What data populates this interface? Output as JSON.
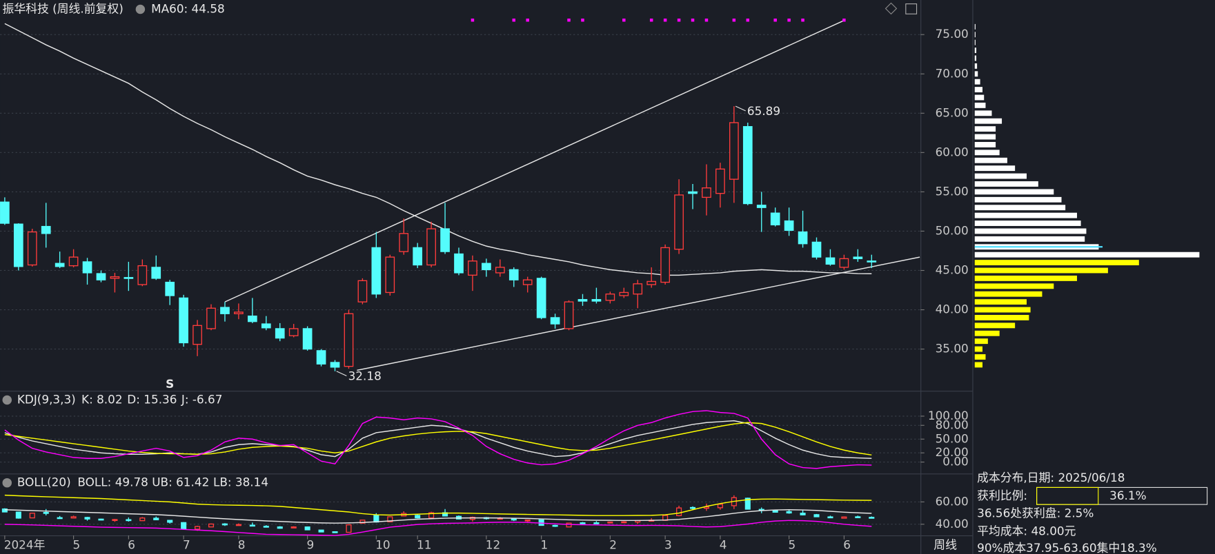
{
  "chart_data": [
    {
      "type": "candlestick",
      "title": "振华科技 (周线.前复权)",
      "period_label": "周线",
      "categories": [
        "2024年",
        null,
        null,
        null,
        null,
        "5",
        null,
        null,
        null,
        "6",
        null,
        null,
        null,
        "7",
        null,
        null,
        null,
        "8",
        null,
        null,
        null,
        null,
        "9",
        null,
        null,
        null,
        null,
        "10",
        null,
        null,
        "11",
        null,
        null,
        null,
        null,
        "12",
        null,
        null,
        null,
        "1",
        null,
        null,
        null,
        null,
        "2",
        null,
        null,
        null,
        "3",
        null,
        null,
        null,
        "4",
        null,
        null,
        null,
        null,
        "5",
        null,
        null,
        null,
        "6",
        null,
        null
      ],
      "open": [
        53.7,
        50.9,
        45.7,
        50.6,
        45.9,
        45.6,
        46.1,
        44.6,
        44,
        44.1,
        43.2,
        45.4,
        43.5,
        41.5,
        35.6,
        37.6,
        40.3,
        39.5,
        39.2,
        38.2,
        37.6,
        36.7,
        37.6,
        34.8,
        33.3,
        32.8,
        41,
        47.9,
        42.2,
        47.4,
        47.9,
        45.7,
        50.3,
        47.1,
        44.4,
        45.9,
        44.7,
        45.1,
        43.2,
        44,
        39,
        37.6,
        41.3,
        41.3,
        41.2,
        41.8,
        42,
        43.2,
        43.5,
        47.7,
        55,
        54.3,
        54.8,
        56.6,
        63.3,
        53.3,
        52.3,
        51.3,
        49.9,
        48.6,
        46.6,
        45.4,
        46.7,
        46.2
      ],
      "high": [
        54.3,
        51,
        50.3,
        53.6,
        47.4,
        47.7,
        46.6,
        45,
        44.7,
        46.1,
        46.4,
        46.9,
        43.8,
        41.9,
        38.7,
        40.7,
        41,
        40.8,
        41.5,
        39.2,
        38.3,
        38.2,
        37.9,
        35,
        33.6,
        40,
        44,
        49.9,
        47,
        51.6,
        48.5,
        51.2,
        53.6,
        47.9,
        46.9,
        46.5,
        46.4,
        45.4,
        44.2,
        44.2,
        39.5,
        41.2,
        42,
        42.8,
        42.3,
        42.8,
        43.8,
        45.4,
        48.3,
        56.6,
        56,
        58.5,
        58.7,
        65.89,
        63.8,
        55,
        53,
        53,
        52.6,
        49.2,
        47.7,
        47,
        47.7,
        47
      ],
      "low": [
        50.8,
        45,
        45.5,
        47.9,
        45.3,
        45.4,
        43.2,
        43.5,
        42.2,
        42.4,
        43,
        43.8,
        40.6,
        35.3,
        34.1,
        37.4,
        38.5,
        38.8,
        38.3,
        37.4,
        36,
        36.5,
        34.8,
        32.8,
        32.18,
        32.5,
        40.7,
        41.5,
        41.8,
        47,
        45.3,
        45.4,
        47.1,
        44.4,
        42.4,
        44.2,
        44.2,
        42.9,
        42.2,
        38.8,
        37.6,
        37.4,
        40.5,
        40.8,
        40.8,
        41.5,
        40.2,
        42.8,
        43.2,
        47.1,
        52.8,
        52,
        53,
        53.6,
        53.3,
        49.9,
        50.6,
        49.4,
        47.9,
        46.4,
        45.6,
        45.1,
        46.1,
        45.3
      ],
      "close": [
        51,
        45.5,
        49.9,
        49.7,
        45.5,
        46.7,
        44.7,
        43.8,
        44.2,
        44,
        45.6,
        44,
        41.8,
        35.8,
        38,
        40.2,
        39.5,
        39.7,
        38.5,
        37.7,
        36.4,
        37.6,
        35,
        33.1,
        32.7,
        39.5,
        43.7,
        42,
        46.7,
        49.7,
        45.7,
        50.3,
        47.4,
        44.7,
        46.2,
        45.1,
        45.4,
        43.8,
        43.8,
        39,
        38.2,
        41,
        41.1,
        41.1,
        42,
        42.2,
        43.3,
        43.6,
        47.9,
        54.6,
        54.8,
        55.5,
        57.9,
        63.8,
        53.5,
        53,
        50.8,
        50.1,
        48.4,
        46.7,
        45.8,
        46.5,
        46.5,
        46.1
      ],
      "up_color": "#ff3c3c",
      "down_color": "#54fcfc",
      "series": [
        {
          "name": "MA60: 44.58",
          "color": "#e6e6e6",
          "values": [
            76.4,
            75.5,
            74.6,
            73.7,
            72.9,
            72.0,
            71.2,
            70.4,
            69.6,
            68.8,
            67.7,
            66.7,
            65.6,
            64.6,
            63.7,
            62.9,
            62.0,
            61.2,
            60.4,
            59.5,
            58.7,
            57.8,
            57.0,
            56.5,
            55.9,
            55.4,
            54.8,
            54.3,
            53.5,
            52.6,
            51.8,
            51.0,
            50.2,
            49.4,
            48.7,
            48.1,
            47.7,
            47.4,
            47.0,
            46.7,
            46.4,
            46.1,
            45.7,
            45.4,
            45.1,
            44.9,
            44.7,
            44.6,
            44.4,
            44.4,
            44.5,
            44.6,
            44.7,
            44.9,
            45.0,
            45.1,
            45.0,
            44.9,
            44.9,
            44.8,
            44.7,
            44.7,
            44.6,
            44.58
          ]
        }
      ],
      "ylim": [
        29.7,
        79.4
      ],
      "yticks": [
        {
          "value": 35,
          "label": "35.00"
        },
        {
          "value": 40,
          "label": "40.00"
        },
        {
          "value": 45,
          "label": "45.00"
        },
        {
          "value": 50,
          "label": "50.00"
        },
        {
          "value": 55,
          "label": "55.00"
        },
        {
          "value": 60,
          "label": "60.00"
        },
        {
          "value": 65,
          "label": "65.00"
        },
        {
          "value": 70,
          "label": "70.00"
        },
        {
          "value": 75,
          "label": "75.00"
        }
      ],
      "grid": true,
      "annotations": [
        {
          "index": 53,
          "value": 65.89,
          "label": "65.89"
        },
        {
          "index": 24,
          "value": 32.18,
          "label": "32.18"
        }
      ],
      "trendlines": [
        {
          "color": "#e6e6e6",
          "x": [
            16,
            61
          ],
          "y": [
            41.0,
            76.8
          ]
        },
        {
          "color": "#e6e6e6",
          "x": [
            25.6,
            66.5
          ],
          "y": [
            32.3,
            46.7
          ]
        }
      ],
      "signals": {
        "color": "#ff00ff",
        "indices": [
          34,
          37,
          38,
          41,
          42,
          45,
          47,
          48,
          49,
          50,
          51,
          53,
          54,
          56,
          57,
          58,
          61
        ]
      },
      "marker": {
        "index": 12,
        "label": "S",
        "color": "#ff2020"
      }
    },
    {
      "type": "line",
      "title": "KDJ(9,3,3)",
      "series": [
        {
          "name": "K: 8.02",
          "color": "#e6e6e6",
          "values": [
            64,
            54,
            46,
            40,
            34,
            28,
            24,
            20,
            18,
            17,
            17,
            18,
            20,
            18,
            17,
            22,
            32,
            38,
            40,
            38,
            36,
            34,
            26,
            16,
            12,
            28,
            52,
            64,
            68,
            72,
            76,
            80,
            78,
            72,
            64,
            52,
            42,
            32,
            24,
            18,
            12,
            14,
            20,
            30,
            40,
            50,
            58,
            64,
            70,
            76,
            82,
            86,
            88,
            90,
            84,
            68,
            52,
            38,
            26,
            18,
            12,
            10,
            9,
            8.02
          ]
        },
        {
          "name": "D: 15.36",
          "color": "#ffff00",
          "values": [
            60,
            56,
            52,
            48,
            44,
            40,
            36,
            32,
            28,
            24,
            21,
            19,
            18,
            18,
            17,
            18,
            22,
            28,
            32,
            34,
            35,
            33,
            30,
            24,
            20,
            24,
            34,
            44,
            52,
            57,
            61,
            64,
            66,
            67,
            66,
            62,
            56,
            50,
            44,
            38,
            32,
            27,
            25,
            26,
            30,
            36,
            42,
            48,
            54,
            60,
            66,
            72,
            78,
            83,
            86,
            84,
            76,
            66,
            55,
            44,
            34,
            26,
            20,
            15.36
          ]
        },
        {
          "name": "J: -6.67",
          "color": "#ff00ff",
          "values": [
            70,
            48,
            30,
            22,
            16,
            10,
            8,
            8,
            12,
            18,
            24,
            30,
            24,
            10,
            14,
            26,
            44,
            52,
            50,
            42,
            36,
            38,
            20,
            2,
            -4,
            36,
            84,
            98,
            96,
            92,
            96,
            94,
            88,
            74,
            58,
            34,
            18,
            6,
            -2,
            -6,
            -4,
            4,
            18,
            34,
            52,
            68,
            80,
            86,
            96,
            104,
            110,
            112,
            108,
            106,
            96,
            50,
            16,
            -4,
            -12,
            -14,
            -10,
            -8,
            -6,
            -6.67
          ]
        }
      ],
      "ylim": [
        -25,
        152
      ],
      "yticks": [
        {
          "value": 0,
          "label": "0.00"
        },
        {
          "value": 20,
          "label": "20.00"
        },
        {
          "value": 50,
          "label": "50.00"
        },
        {
          "value": 80,
          "label": "80.00"
        },
        {
          "value": 100,
          "label": "100.00"
        }
      ],
      "grid": true
    },
    {
      "type": "line",
      "title": "BOLL(20)",
      "candles": true,
      "series": [
        {
          "name": "BOLL: 49.78",
          "color": "#e6e6e6",
          "values": [
            53,
            52.6,
            52.2,
            51.8,
            51.4,
            51,
            50.6,
            50.2,
            49.8,
            49.4,
            49,
            48.6,
            48,
            47.2,
            46.4,
            45.6,
            44.9,
            44.2,
            43.6,
            43,
            42.5,
            42,
            41.6,
            41.2,
            41,
            41.2,
            41.6,
            42.2,
            43,
            43.8,
            44.5,
            45,
            45.4,
            45.6,
            45.7,
            45.7,
            45.6,
            45.4,
            45.2,
            44.8,
            44.4,
            44,
            43.8,
            43.6,
            43.5,
            43.4,
            43.4,
            43.5,
            43.8,
            44.4,
            45.5,
            46.8,
            48.2,
            49.8,
            51.2,
            52.2,
            52.8,
            53,
            52.8,
            52.4,
            51.6,
            50.8,
            50.2,
            49.78
          ]
        },
        {
          "name": "UB: 61.42",
          "color": "#ffff00",
          "values": [
            66,
            65.5,
            65,
            64.6,
            64.2,
            63.8,
            63.4,
            63,
            62.4,
            61.8,
            61.2,
            60.6,
            60,
            59,
            58,
            57.5,
            57.2,
            57,
            56.8,
            56.5,
            56,
            55,
            54,
            53,
            52,
            51,
            49.5,
            48.5,
            48.2,
            48.6,
            49,
            49.5,
            50,
            50,
            49.8,
            49.5,
            49.2,
            49,
            48.8,
            48.6,
            48.4,
            48.2,
            48,
            47.8,
            47.8,
            47.8,
            47.9,
            48,
            48.5,
            50,
            53,
            56,
            58.5,
            60.5,
            62,
            62.5,
            62.6,
            62.4,
            62.2,
            62,
            61.8,
            61.6,
            61.5,
            61.42
          ]
        },
        {
          "name": "LB: 38.14",
          "color": "#ff00ff",
          "values": [
            40,
            39.7,
            39.4,
            39,
            38.6,
            38.2,
            37.8,
            37.4,
            37.2,
            37,
            36.8,
            36.6,
            36,
            35.4,
            34.8,
            34.2,
            33.4,
            32.6,
            31.8,
            31,
            30.8,
            30.6,
            30.4,
            30.2,
            30,
            31,
            33,
            35.2,
            37.4,
            38.6,
            39.8,
            40.4,
            40.8,
            41,
            41.2,
            41.6,
            41.8,
            41.8,
            41.6,
            41,
            40.4,
            39.8,
            39.6,
            39.4,
            39.2,
            39,
            38.9,
            39,
            38.9,
            38.6,
            38,
            37.6,
            37.9,
            39,
            40.2,
            41.8,
            42.9,
            43.4,
            43.2,
            42.6,
            41.4,
            40,
            39,
            38.14
          ]
        }
      ],
      "ylim": [
        30,
        84
      ],
      "yticks": [
        {
          "value": 40,
          "label": "40.00"
        },
        {
          "value": 60,
          "label": "60.00"
        }
      ],
      "grid": true
    },
    {
      "type": "distribution",
      "xlim": [
        0,
        310
      ],
      "profit": {
        "color": "#ffff00",
        "prices": [
          33,
          34,
          35,
          36,
          37,
          38,
          39,
          40,
          41,
          42,
          43,
          44,
          45,
          46
        ],
        "values": [
          10,
          14,
          10,
          17,
          32,
          52,
          70,
          72,
          67,
          87,
          102,
          132,
          172,
          212
        ]
      },
      "loss": {
        "color": "#ffffff",
        "prices": [
          47,
          48,
          49,
          50,
          51,
          52,
          53,
          54,
          55,
          56,
          57,
          58,
          59,
          60,
          61,
          62,
          63,
          64,
          65,
          66,
          67,
          68,
          69,
          70,
          71,
          72,
          73,
          74,
          75,
          76
        ],
        "values": [
          290,
          160,
          142,
          144,
          137,
          132,
          117,
          112,
          102,
          82,
          67,
          52,
          42,
          32,
          27,
          27,
          27,
          35,
          22,
          14,
          12,
          10,
          7,
          4,
          3,
          2,
          2,
          1,
          1,
          1
        ]
      },
      "info_title": "成本分布,日期: 2025/06/18",
      "profit_ratio_label": "获利比例:",
      "profit_ratio": {
        "value": 36.1,
        "label": "36.1%"
      },
      "profit_at": "36.56处获利盘: 2.5%",
      "average_cost": {
        "value": 48,
        "label": "平均成本: 48.00元",
        "color": "#4fe0ff"
      },
      "concentration": "90%成本37.95-63.60集中18.3%"
    }
  ]
}
